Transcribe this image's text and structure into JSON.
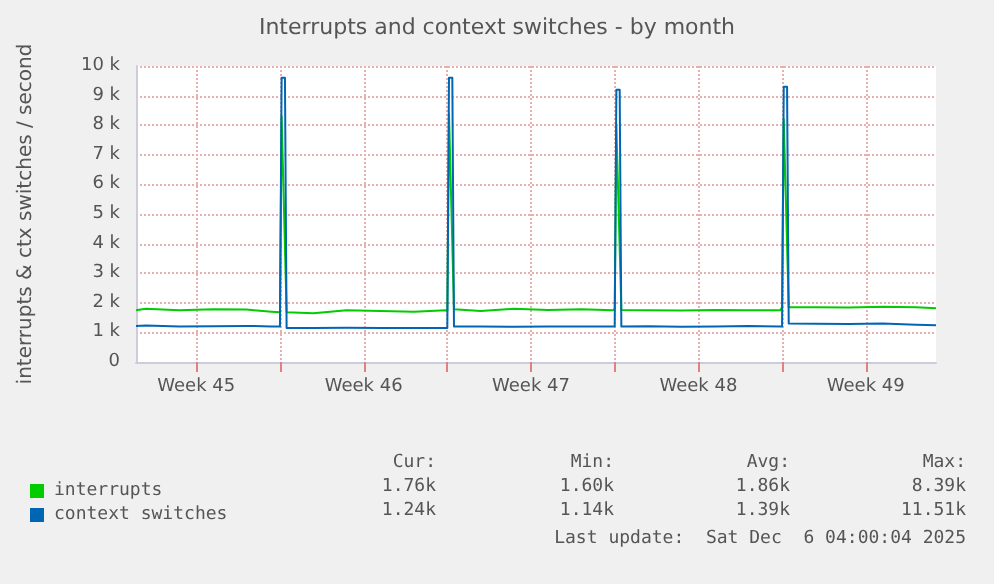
{
  "chart_data": {
    "type": "line",
    "title": "Interrupts and context switches - by month",
    "ylabel": "interrupts & ctx switches / second",
    "xlim": [
      "2025-11-03T23:30",
      "2025-12-07T10:30"
    ],
    "xticks": [
      {
        "value": "2025-11-06T12:00",
        "label": "Week 45"
      },
      {
        "value": "2025-11-10T00:00",
        "label": null
      },
      {
        "value": "2025-11-13T12:00",
        "label": "Week 46"
      },
      {
        "value": "2025-11-17T00:00",
        "label": null
      },
      {
        "value": "2025-11-20T12:00",
        "label": "Week 47"
      },
      {
        "value": "2025-11-24T00:00",
        "label": null
      },
      {
        "value": "2025-11-27T12:00",
        "label": "Week 48"
      },
      {
        "value": "2025-12-01T00:00",
        "label": null
      },
      {
        "value": "2025-12-04T12:00",
        "label": "Week 49"
      }
    ],
    "ylim": [
      0,
      10000
    ],
    "yticks": [
      0,
      {
        "value": 1000,
        "label": "1 k"
      },
      {
        "value": 2000,
        "label": "2 k"
      },
      {
        "value": 3000,
        "label": "3 k"
      },
      {
        "value": 4000,
        "label": "4 k"
      },
      {
        "value": 5000,
        "label": "5 k"
      },
      {
        "value": 6000,
        "label": "6 k"
      },
      {
        "value": 7000,
        "label": "7 k"
      },
      {
        "value": 8000,
        "label": "8 k"
      },
      {
        "value": 9000,
        "label": "9 k"
      },
      {
        "value": 10000,
        "label": "10 k"
      }
    ],
    "grid": true,
    "legend": "bottom left",
    "marker": "none",
    "line_style": "solid",
    "series": [
      {
        "name": "interrupts",
        "color": "#00cc00",
        "x": [
          "2025-11-03T23:30",
          "2025-11-04T09:30",
          "2025-11-05T19:00",
          "2025-11-07T05:00",
          "2025-11-08T14:30",
          "2025-11-09T15:30",
          "2025-11-10T00:00",
          "2025-11-10T01:40",
          "2025-11-10T06:40",
          "2025-11-11T09:30",
          "2025-11-12T19:00",
          "2025-11-14T05:00",
          "2025-11-15T14:30",
          "2025-11-16T22:20",
          "2025-11-17T00:00",
          "2025-11-17T01:40",
          "2025-11-17T06:40",
          "2025-11-18T09:30",
          "2025-11-19T19:00",
          "2025-11-21T05:00",
          "2025-11-22T14:30",
          "2025-11-23T22:20",
          "2025-11-24T00:00",
          "2025-11-24T01:40",
          "2025-11-24T06:40",
          "2025-11-25T09:30",
          "2025-11-26T19:00",
          "2025-11-28T05:00",
          "2025-11-29T14:30",
          "2025-11-30T22:20",
          "2025-12-01T00:00",
          "2025-12-01T01:40",
          "2025-12-01T06:40",
          "2025-12-02T09:30",
          "2025-12-03T19:00",
          "2025-12-05T05:00",
          "2025-12-06T14:30",
          "2025-12-07T10:30"
        ],
        "values": [
          1750,
          1800,
          1750,
          1780,
          1770,
          1700,
          1680,
          8300,
          1680,
          1650,
          1750,
          1720,
          1700,
          1750,
          1720,
          8390,
          1780,
          1720,
          1800,
          1760,
          1780,
          1750,
          1800,
          8000,
          1760,
          1750,
          1740,
          1760,
          1750,
          1750,
          1860,
          8200,
          1850,
          1850,
          1840,
          1870,
          1850,
          1820
        ]
      },
      {
        "name": "context switches",
        "color": "#0066b3",
        "x": [
          "2025-11-03T23:30",
          "2025-11-04T09:30",
          "2025-11-05T19:00",
          "2025-11-07T05:00",
          "2025-11-08T14:30",
          "2025-11-09T15:30",
          "2025-11-10T00:00",
          "2025-11-10T01:40",
          "2025-11-10T05:00",
          "2025-11-10T06:40",
          "2025-11-11T09:30",
          "2025-11-12T19:00",
          "2025-11-14T05:00",
          "2025-11-15T14:30",
          "2025-11-16T22:20",
          "2025-11-17T00:00",
          "2025-11-17T01:40",
          "2025-11-17T05:00",
          "2025-11-17T06:40",
          "2025-11-18T09:30",
          "2025-11-19T19:00",
          "2025-11-21T05:00",
          "2025-11-22T14:30",
          "2025-11-23T22:20",
          "2025-11-24T00:00",
          "2025-11-24T01:40",
          "2025-11-24T05:00",
          "2025-11-24T06:40",
          "2025-11-25T09:30",
          "2025-11-26T19:00",
          "2025-11-28T05:00",
          "2025-11-29T14:30",
          "2025-11-30T22:20",
          "2025-12-01T00:00",
          "2025-12-01T01:40",
          "2025-12-01T05:00",
          "2025-12-01T06:40",
          "2025-12-02T09:30",
          "2025-12-03T19:00",
          "2025-12-05T05:00",
          "2025-12-06T14:30",
          "2025-12-07T10:30"
        ],
        "values": [
          1220,
          1230,
          1200,
          1210,
          1220,
          1200,
          1200,
          9600,
          9600,
          1150,
          1150,
          1160,
          1150,
          1150,
          1150,
          1150,
          9600,
          9600,
          1200,
          1200,
          1190,
          1200,
          1200,
          1200,
          1200,
          9200,
          9200,
          1200,
          1210,
          1190,
          1200,
          1220,
          1200,
          1200,
          9300,
          9300,
          1300,
          1290,
          1280,
          1300,
          1260,
          1240
        ]
      }
    ],
    "annotations": [
      "Cur:",
      "Min:",
      "Avg:",
      "Max:",
      "1.76k",
      "1.60k",
      "1.86k",
      "8.39k",
      "1.24k",
      "1.14k",
      "1.39k",
      "11.51k",
      "Last update:  Sat Dec  6 04:00:04 2025"
    ]
  }
}
